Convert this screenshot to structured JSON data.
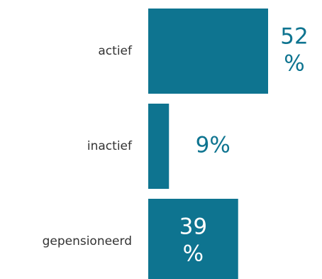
{
  "chart_data": {
    "type": "bar",
    "orientation": "horizontal",
    "categories": [
      "actief",
      "inactief",
      "gepensioneerd"
    ],
    "values": [
      52,
      9,
      39
    ],
    "value_labels": [
      [
        "52",
        "%"
      ],
      [
        "9%"
      ],
      [
        "39",
        "%"
      ]
    ],
    "unit": "%",
    "xlim": [
      0,
      52
    ],
    "title": "",
    "xlabel": "",
    "ylabel": "",
    "grid": false,
    "legend": "none",
    "bar_color": "#0e7490",
    "label_color_outside": "#0e7490",
    "label_color_inside": "#ffffff"
  }
}
